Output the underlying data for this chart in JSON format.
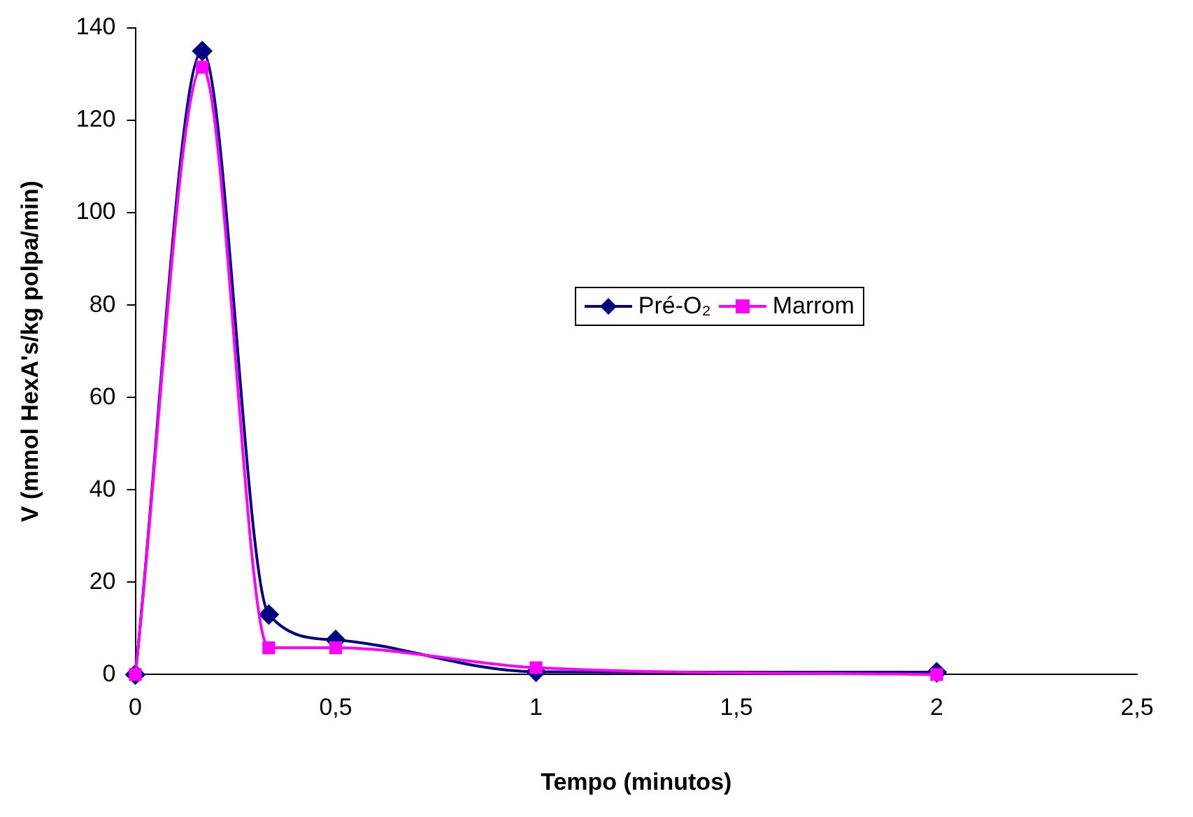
{
  "chart_data": {
    "type": "line",
    "xlabel": "Tempo (minutos)",
    "ylabel": "V (mmol HexA's/kg polpa/min)",
    "xlim": [
      0,
      2.5
    ],
    "xticks": [
      0,
      {
        "value": 0.5,
        "label": "0,5"
      },
      1,
      {
        "value": 1.5,
        "label": "1,5"
      },
      2,
      {
        "value": 2.5,
        "label": "2,5"
      }
    ],
    "ylim": [
      0,
      140
    ],
    "yticks": [
      0,
      20,
      40,
      60,
      80,
      100,
      120,
      140
    ],
    "grid": false,
    "legend": "center",
    "series": [
      {
        "name": "Pré-O₂",
        "color": "#000080",
        "marker": "diamond",
        "x": [
          0,
          0.167,
          0.333,
          0.5,
          1,
          2
        ],
        "values": [
          0,
          135,
          13,
          7.5,
          0.6,
          0.5
        ]
      },
      {
        "name": "Marrom",
        "color": "#ff00ff",
        "marker": "square",
        "x": [
          0,
          0.167,
          0.333,
          0.5,
          1,
          2
        ],
        "values": [
          0,
          131.5,
          5.8,
          5.8,
          1.5,
          0
        ]
      }
    ]
  }
}
